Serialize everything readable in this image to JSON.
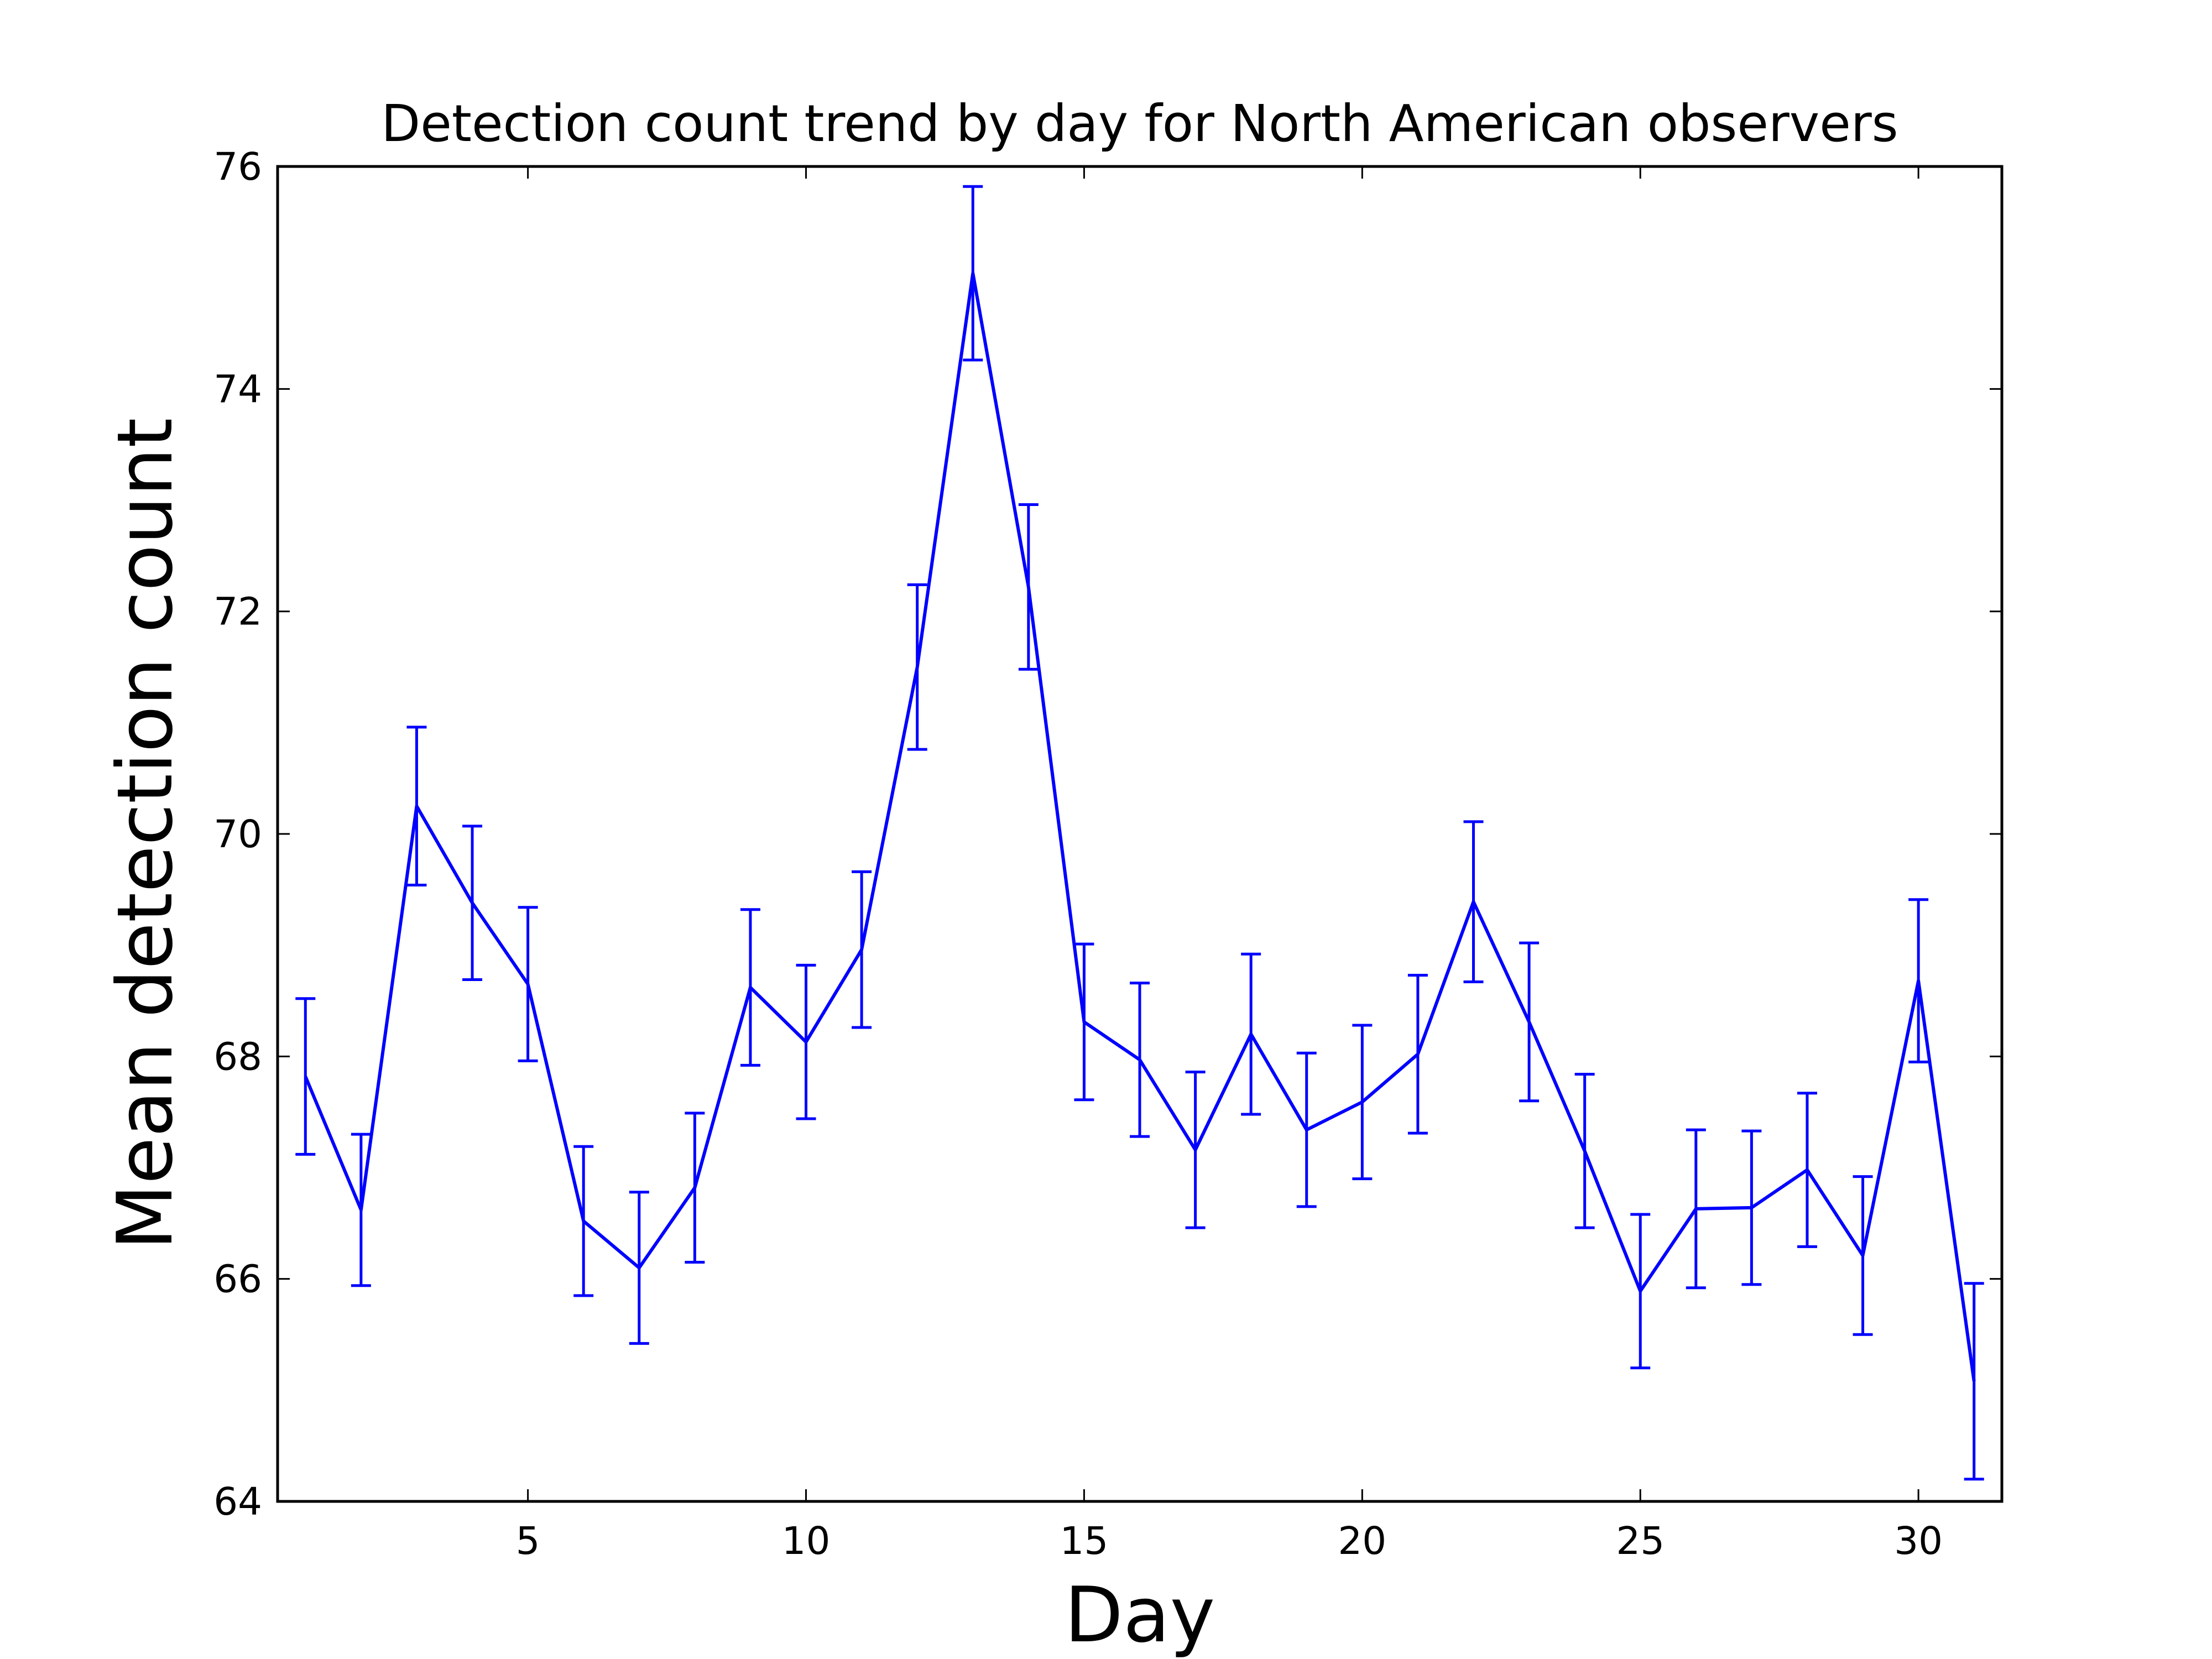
{
  "chart_data": {
    "type": "line",
    "title": "Detection count trend by day for North American observers",
    "xlabel": "Day",
    "ylabel": "Mean detection count",
    "xlim": [
      0.5,
      31.5
    ],
    "ylim": [
      64,
      76
    ],
    "xticks": [
      5,
      10,
      15,
      20,
      25,
      30
    ],
    "yticks": [
      64,
      66,
      68,
      70,
      72,
      74,
      76
    ],
    "grid": false,
    "legend": "none",
    "series": [
      {
        "color": "#0000ff",
        "x": [
          1,
          2,
          3,
          4,
          5,
          6,
          7,
          8,
          9,
          10,
          11,
          12,
          13,
          14,
          15,
          16,
          17,
          18,
          19,
          20,
          21,
          22,
          23,
          24,
          25,
          26,
          27,
          28,
          29,
          30,
          31
        ],
        "y": [
          67.82,
          66.62,
          70.25,
          69.38,
          68.65,
          66.52,
          66.1,
          66.82,
          68.62,
          68.13,
          68.96,
          71.5,
          75.04,
          72.22,
          68.31,
          67.97,
          67.16,
          68.2,
          67.34,
          67.59,
          68.02,
          69.39,
          68.31,
          67.15,
          65.89,
          66.63,
          66.64,
          66.98,
          66.21,
          68.68,
          65.08
        ],
        "yerr": [
          0.7,
          0.68,
          0.71,
          0.69,
          0.69,
          0.67,
          0.68,
          0.67,
          0.7,
          0.69,
          0.7,
          0.74,
          0.78,
          0.74,
          0.7,
          0.69,
          0.7,
          0.72,
          0.69,
          0.69,
          0.71,
          0.72,
          0.71,
          0.69,
          0.69,
          0.71,
          0.69,
          0.69,
          0.71,
          0.73,
          0.88
        ]
      }
    ]
  }
}
